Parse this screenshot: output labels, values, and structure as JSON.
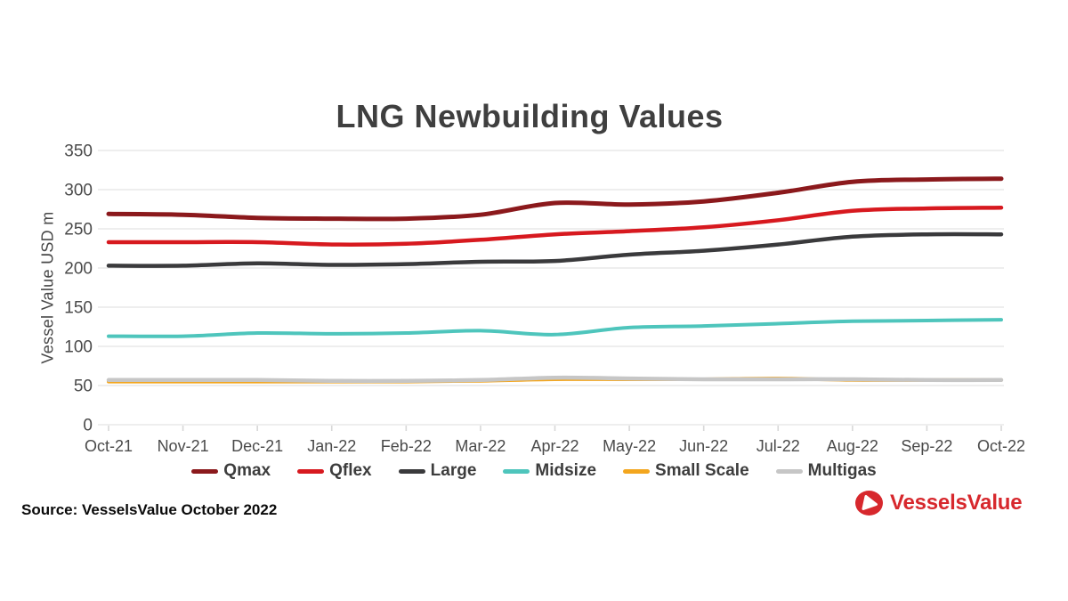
{
  "title": "LNG Newbuilding Values",
  "y_axis": {
    "label": "Vessel Value USD m",
    "ticks": [
      0,
      50,
      100,
      150,
      200,
      250,
      300,
      350
    ]
  },
  "source": {
    "text": "Source: VesselsValue October 2022"
  },
  "logo": {
    "text": "VesselsValue",
    "color": "#d7282d"
  },
  "colors": {
    "title_text": "#3f3f3f",
    "axis_text": "#4a4a4a",
    "gridline": "#e8e8e8",
    "tick_mark": "#d8d8d8",
    "legend_text": "#3d3d3d"
  },
  "chart_data": {
    "type": "line",
    "title": "LNG Newbuilding Values",
    "xlabel": "",
    "ylabel": "Vessel Value USD m",
    "ylim": [
      0,
      350
    ],
    "grid": true,
    "legend_position": "bottom",
    "categories": [
      "Oct-21",
      "Nov-21",
      "Dec-21",
      "Jan-22",
      "Feb-22",
      "Mar-22",
      "Apr-22",
      "May-22",
      "Jun-22",
      "Jul-22",
      "Aug-22",
      "Sep-22",
      "Oct-22"
    ],
    "series": [
      {
        "name": "Qmax",
        "color": "#8b191c",
        "width": 5,
        "values": [
          269,
          268,
          264,
          263,
          263,
          268,
          283,
          281,
          285,
          296,
          310,
          313,
          314
        ]
      },
      {
        "name": "Qflex",
        "color": "#d7191f",
        "width": 4.5,
        "values": [
          233,
          233,
          233,
          230,
          231,
          236,
          243,
          247,
          252,
          261,
          273,
          276,
          277
        ]
      },
      {
        "name": "Large",
        "color": "#3a3a3c",
        "width": 4.5,
        "values": [
          203,
          203,
          206,
          204,
          205,
          208,
          209,
          217,
          222,
          230,
          240,
          243,
          243
        ]
      },
      {
        "name": "Midsize",
        "color": "#4ec5bc",
        "width": 4,
        "values": [
          113,
          113,
          117,
          116,
          117,
          120,
          115,
          124,
          126,
          129,
          132,
          133,
          134
        ]
      },
      {
        "name": "Small Scale",
        "color": "#f3a61e",
        "width": 4,
        "values": [
          55,
          55,
          55,
          55,
          55,
          56,
          58,
          58,
          58,
          59,
          57,
          57,
          57
        ]
      },
      {
        "name": "Multigas",
        "color": "#c6c6c6",
        "width": 4.5,
        "values": [
          57,
          57,
          57,
          56,
          56,
          57,
          60,
          59,
          58,
          58,
          58,
          57,
          57
        ]
      }
    ]
  }
}
